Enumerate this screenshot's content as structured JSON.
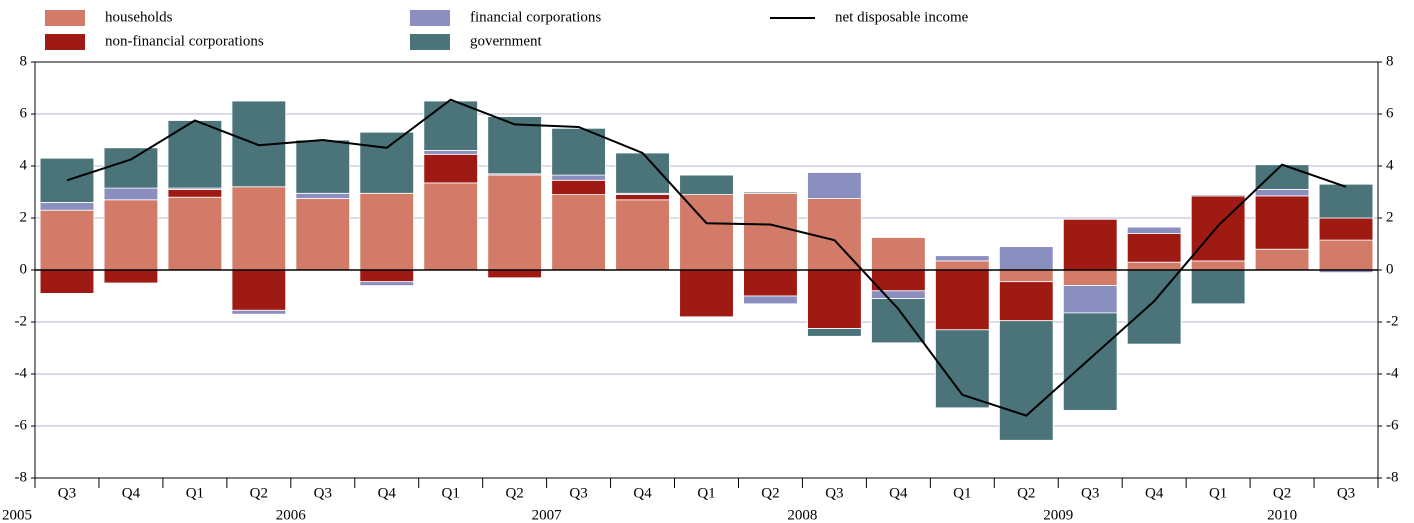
{
  "chart_data": {
    "type": "bar",
    "stacked": true,
    "legend": "top-left",
    "grid": true,
    "categories": [
      "Q3",
      "Q4",
      "Q1",
      "Q2",
      "Q3",
      "Q4",
      "Q1",
      "Q2",
      "Q3",
      "Q4",
      "Q1",
      "Q2",
      "Q3",
      "Q4",
      "Q1",
      "Q2",
      "Q3",
      "Q4",
      "Q1",
      "Q2",
      "Q3"
    ],
    "years": [
      "2005",
      null,
      "2006",
      null,
      null,
      null,
      "2007",
      null,
      null,
      null,
      "2008",
      null,
      null,
      null,
      "2009",
      null,
      null,
      null,
      "2010",
      null,
      null
    ],
    "ylim": [
      -8,
      8
    ],
    "yticks": [
      -8,
      -6,
      -4,
      -2,
      0,
      2,
      4,
      6,
      8
    ],
    "series": [
      {
        "name": "households",
        "color": "#d27b68",
        "values": [
          2.3,
          2.7,
          2.8,
          3.2,
          2.75,
          2.95,
          3.35,
          3.65,
          2.9,
          2.7,
          2.9,
          2.95,
          2.75,
          1.25,
          0.35,
          -0.45,
          -0.6,
          0.3,
          0.35,
          0.8,
          1.15
        ]
      },
      {
        "name": "non-financial corporations",
        "color": "#a01a14",
        "values": [
          -0.9,
          -0.5,
          0.3,
          -1.55,
          0,
          -0.45,
          1.1,
          -0.3,
          0.55,
          0.2,
          -1.8,
          -1.0,
          -2.25,
          -0.8,
          -2.3,
          -1.5,
          1.95,
          1.1,
          2.5,
          2.05,
          0.85
        ]
      },
      {
        "name": "financial corporations",
        "color": "#8b8fc0",
        "values": [
          0.3,
          0.45,
          0.05,
          -0.15,
          0.2,
          -0.15,
          0.15,
          0.05,
          0.2,
          0.05,
          0,
          -0.3,
          1.0,
          -0.3,
          0.2,
          0.9,
          -1.05,
          0.25,
          0.05,
          0.25,
          -0.1
        ]
      },
      {
        "name": "government",
        "color": "#4a7479",
        "values": [
          1.7,
          1.55,
          2.6,
          3.3,
          2.05,
          2.35,
          1.9,
          2.2,
          1.8,
          1.55,
          0.75,
          0.05,
          -0.3,
          -1.7,
          -3.0,
          -4.6,
          -3.75,
          -2.85,
          -1.3,
          0.95,
          1.3
        ]
      },
      {
        "name": "net disposable income",
        "type": "line",
        "color": "#000000",
        "values": [
          3.45,
          4.25,
          5.75,
          4.8,
          5.0,
          4.7,
          6.55,
          5.6,
          5.5,
          4.5,
          1.8,
          1.75,
          1.15,
          -1.5,
          -4.8,
          -5.6,
          -3.4,
          -1.2,
          1.7,
          4.05,
          3.2
        ]
      }
    ]
  }
}
